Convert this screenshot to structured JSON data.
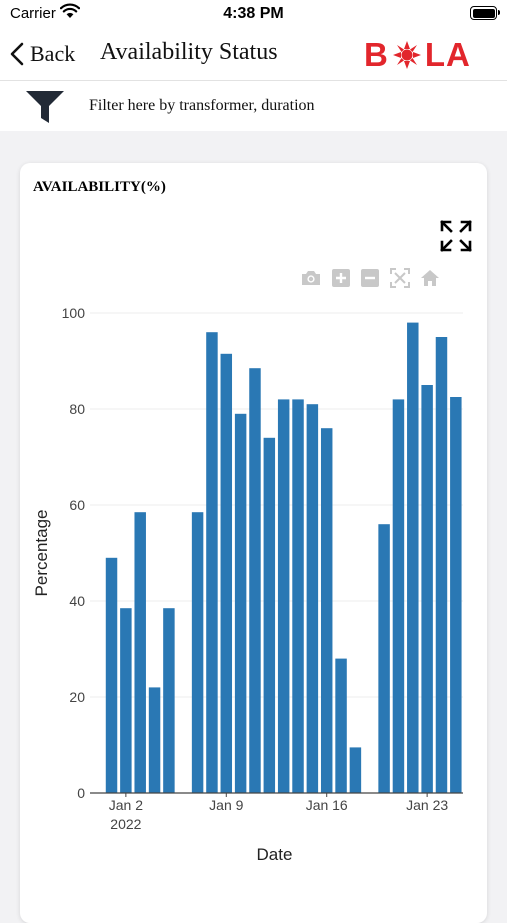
{
  "status_bar": {
    "carrier": "Carrier",
    "time": "4:38 PM"
  },
  "nav": {
    "back_label": "Back",
    "title": "Availability Status",
    "logo_text_left": "B",
    "logo_text_right": "LA"
  },
  "filter": {
    "label": "Filter here by transformer, duration",
    "icon": "filter-funnel-icon"
  },
  "card": {
    "title": "AVAILABILITY(%)"
  },
  "colors": {
    "bar": "#2a78b4",
    "logo": "#e2262c",
    "grid": "#eeeeee"
  },
  "modebar_icons": [
    "camera-icon",
    "zoom-in-icon",
    "zoom-out-icon",
    "autoscale-icon",
    "home-icon"
  ],
  "chart_data": {
    "type": "bar",
    "xlabel": "Date",
    "ylabel": "Percentage",
    "ylim": [
      0,
      100
    ],
    "yticks": [
      0,
      20,
      40,
      60,
      80,
      100
    ],
    "xticks": [
      {
        "date": "2022-01-02",
        "label": "Jan 2",
        "sublabel": "2022"
      },
      {
        "date": "2022-01-09",
        "label": "Jan 9",
        "sublabel": ""
      },
      {
        "date": "2022-01-16",
        "label": "Jan 16",
        "sublabel": ""
      },
      {
        "date": "2022-01-23",
        "label": "Jan 23",
        "sublabel": ""
      }
    ],
    "x_range": [
      "2021-12-31",
      "2022-01-26"
    ],
    "grid": true,
    "points": [
      {
        "date": "2022-01-01",
        "value": 49
      },
      {
        "date": "2022-01-02",
        "value": 38.5
      },
      {
        "date": "2022-01-03",
        "value": 58.5
      },
      {
        "date": "2022-01-04",
        "value": 22
      },
      {
        "date": "2022-01-05",
        "value": 38.5
      },
      {
        "date": "2022-01-07",
        "value": 58.5
      },
      {
        "date": "2022-01-08",
        "value": 96
      },
      {
        "date": "2022-01-09",
        "value": 91.5
      },
      {
        "date": "2022-01-10",
        "value": 79
      },
      {
        "date": "2022-01-11",
        "value": 88.5
      },
      {
        "date": "2022-01-12",
        "value": 74
      },
      {
        "date": "2022-01-13",
        "value": 82
      },
      {
        "date": "2022-01-14",
        "value": 82
      },
      {
        "date": "2022-01-15",
        "value": 81
      },
      {
        "date": "2022-01-16",
        "value": 76
      },
      {
        "date": "2022-01-17",
        "value": 28
      },
      {
        "date": "2022-01-18",
        "value": 9.5
      },
      {
        "date": "2022-01-20",
        "value": 56
      },
      {
        "date": "2022-01-21",
        "value": 82
      },
      {
        "date": "2022-01-22",
        "value": 98
      },
      {
        "date": "2022-01-23",
        "value": 85
      },
      {
        "date": "2022-01-24",
        "value": 95
      },
      {
        "date": "2022-01-25",
        "value": 82.5
      }
    ]
  }
}
